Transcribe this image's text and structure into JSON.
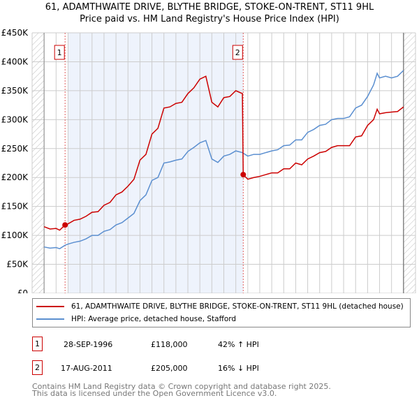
{
  "title": "61, ADAMTHWAITE DRIVE, BLYTHE BRIDGE, STOKE-ON-TRENT, ST11 9HL",
  "subtitle": "Price paid vs. HM Land Registry's House Price Index (HPI)",
  "chart_data": {
    "type": "line",
    "xlim": [
      1994,
      2026
    ],
    "ylim": [
      0,
      450000
    ],
    "x_ticks": [
      "1994",
      "1995",
      "1996",
      "1997",
      "1998",
      "1999",
      "2000",
      "2001",
      "2002",
      "2003",
      "2004",
      "2005",
      "2006",
      "2007",
      "2008",
      "2009",
      "2010",
      "2011",
      "2012",
      "2013",
      "2014",
      "2015",
      "2016",
      "2017",
      "2018",
      "2019",
      "2020",
      "2021",
      "2022",
      "2023",
      "2024",
      "2025",
      "2026"
    ],
    "y_ticks": [
      {
        "v": 0,
        "label": "£0"
      },
      {
        "v": 50000,
        "label": "£50K"
      },
      {
        "v": 100000,
        "label": "£100K"
      },
      {
        "v": 150000,
        "label": "£150K"
      },
      {
        "v": 200000,
        "label": "£200K"
      },
      {
        "v": 250000,
        "label": "£250K"
      },
      {
        "v": 300000,
        "label": "£300K"
      },
      {
        "v": 350000,
        "label": "£350K"
      },
      {
        "v": 400000,
        "label": "£400K"
      },
      {
        "v": 450000,
        "label": "£450K"
      }
    ],
    "series": [
      {
        "name": "61, ADAMTHWAITE DRIVE, BLYTHE BRIDGE, STOKE-ON-TRENT, ST11 9HL (detached house)",
        "color": "#cc0000",
        "x": [
          1995,
          1995.5,
          1996,
          1996.3,
          1996.75,
          1997,
          1997.5,
          1998,
          1998.5,
          1999,
          1999.5,
          2000,
          2000.5,
          2001,
          2001.5,
          2002,
          2002.5,
          2003,
          2003.5,
          2004,
          2004.5,
          2005,
          2005.5,
          2006,
          2006.5,
          2007,
          2007.5,
          2008,
          2008.5,
          2009,
          2009.5,
          2010,
          2010.5,
          2011,
          2011.55,
          2011.62,
          2012,
          2012.5,
          2013,
          2013.5,
          2014,
          2014.5,
          2015,
          2015.5,
          2016,
          2016.5,
          2017,
          2017.5,
          2018,
          2018.5,
          2019,
          2019.5,
          2020,
          2020.5,
          2021,
          2021.5,
          2022,
          2022.5,
          2022.8,
          2023,
          2023.5,
          2024,
          2024.5,
          2025
        ],
        "y": [
          115000,
          111000,
          112000,
          109000,
          118000,
          120000,
          126000,
          128000,
          133000,
          140000,
          141000,
          152000,
          157000,
          170000,
          175000,
          185000,
          197000,
          230000,
          240000,
          275000,
          285000,
          320000,
          322000,
          328000,
          330000,
          345000,
          355000,
          370000,
          375000,
          330000,
          322000,
          338000,
          340000,
          350000,
          345000,
          205000,
          197000,
          200000,
          202000,
          205000,
          208000,
          208000,
          215000,
          215000,
          225000,
          222000,
          232000,
          237000,
          243000,
          245000,
          252000,
          255000,
          255000,
          255000,
          270000,
          272000,
          290000,
          300000,
          318000,
          310000,
          312000,
          313000,
          314000,
          322000
        ]
      },
      {
        "name": "HPI: Average price, detached house, Stafford",
        "color": "#5b8fd0",
        "x": [
          1995,
          1995.5,
          1996,
          1996.3,
          1996.75,
          1997,
          1997.5,
          1998,
          1998.5,
          1999,
          1999.5,
          2000,
          2000.5,
          2001,
          2001.5,
          2002,
          2002.5,
          2003,
          2003.5,
          2004,
          2004.5,
          2005,
          2005.5,
          2006,
          2006.5,
          2007,
          2007.5,
          2008,
          2008.5,
          2009,
          2009.5,
          2010,
          2010.5,
          2011,
          2011.55,
          2012,
          2012.5,
          2013,
          2013.5,
          2014,
          2014.5,
          2015,
          2015.5,
          2016,
          2016.5,
          2017,
          2017.5,
          2018,
          2018.5,
          2019,
          2019.5,
          2020,
          2020.5,
          2021,
          2021.5,
          2022,
          2022.5,
          2022.8,
          2023,
          2023.5,
          2024,
          2024.5,
          2025
        ],
        "y": [
          80000,
          78000,
          79000,
          77000,
          83000,
          85000,
          88000,
          90000,
          94000,
          100000,
          100000,
          107000,
          110000,
          118000,
          122000,
          130000,
          138000,
          160000,
          170000,
          195000,
          200000,
          225000,
          227000,
          230000,
          232000,
          245000,
          252000,
          260000,
          264000,
          232000,
          226000,
          237000,
          240000,
          246000,
          243000,
          237000,
          240000,
          240000,
          243000,
          246000,
          248000,
          255000,
          256000,
          265000,
          265000,
          278000,
          283000,
          290000,
          292000,
          300000,
          302000,
          302000,
          305000,
          320000,
          325000,
          340000,
          360000,
          380000,
          372000,
          375000,
          372000,
          375000,
          385000
        ]
      }
    ],
    "sales": [
      {
        "label": "1",
        "x": 1996.75,
        "y": 118000
      },
      {
        "label": "2",
        "x": 2011.62,
        "y": 205000
      }
    ]
  },
  "legend": {
    "red": "61, ADAMTHWAITE DRIVE, BLYTHE BRIDGE, STOKE-ON-TRENT, ST11 9HL (detached house)",
    "blue": "HPI: Average price, detached house, Stafford"
  },
  "transactions": [
    {
      "num": "1",
      "date": "28-SEP-1996",
      "price": "£118,000",
      "hpi": "42% ↑ HPI"
    },
    {
      "num": "2",
      "date": "17-AUG-2011",
      "price": "£205,000",
      "hpi": "16% ↓ HPI"
    }
  ],
  "footer": [
    "Contains HM Land Registry data © Crown copyright and database right 2025.",
    "This data is licensed under the Open Government Licence v3.0."
  ]
}
